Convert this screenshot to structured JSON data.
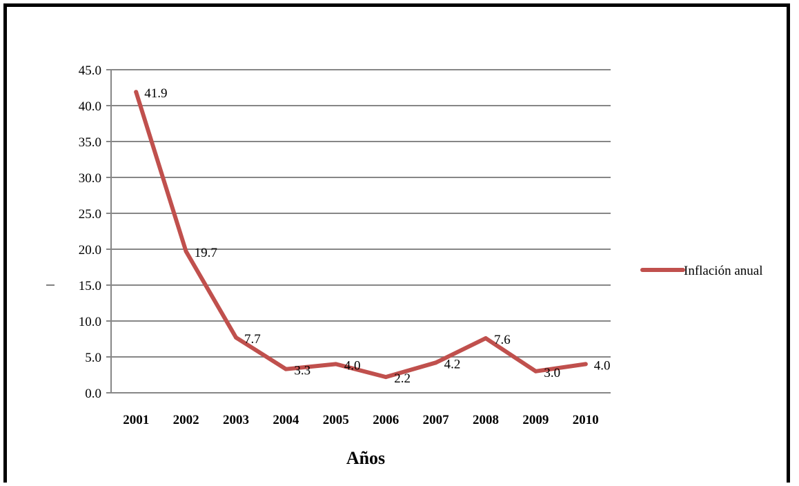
{
  "chart_data": {
    "type": "line",
    "categories": [
      "2001",
      "2002",
      "2003",
      "2004",
      "2005",
      "2006",
      "2007",
      "2008",
      "2009",
      "2010"
    ],
    "series": [
      {
        "name": "Inflación anual",
        "values": [
          41.9,
          19.7,
          7.7,
          3.3,
          4.0,
          2.2,
          4.2,
          7.6,
          3.0,
          4.0
        ],
        "labels": [
          "41.9",
          "19.7",
          "7.7",
          "3.3",
          "4.0",
          "2.2",
          "4.2",
          "7.6",
          "3.0",
          "4.0"
        ],
        "color": "#C0504D"
      }
    ],
    "title": "",
    "xlabel": "Años",
    "ylabel": "",
    "ylim": [
      0,
      45
    ],
    "yticks": [
      "0.0",
      "5.0",
      "10.0",
      "15.0",
      "20.0",
      "25.0",
      "30.0",
      "35.0",
      "40.0",
      "45.0"
    ],
    "grid": true,
    "gridColor": "#868686",
    "legend_position": "right"
  }
}
